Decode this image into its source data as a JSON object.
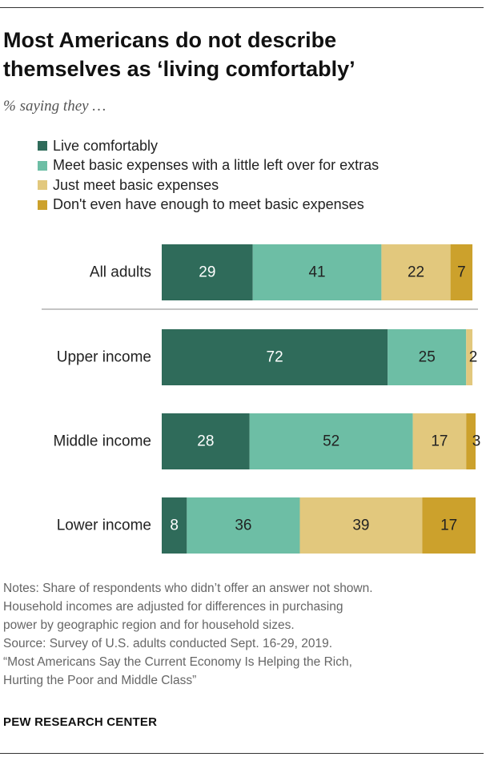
{
  "title_lines": [
    "Most Americans do not describe",
    "themselves as ‘living comfortably’"
  ],
  "subtitle": "% saying they …",
  "legend": [
    {
      "label": "Live comfortably",
      "color": "#2f6b5a"
    },
    {
      "label": "Meet basic expenses with a little left over for extras",
      "color": "#6dbea5"
    },
    {
      "label": "Just meet basic expenses",
      "color": "#e2c87d"
    },
    {
      "label": "Don't even have enough to meet basic expenses",
      "color": "#cca12c"
    }
  ],
  "chart_data": {
    "type": "bar",
    "orientation": "horizontal",
    "stacked": true,
    "title": "Most Americans do not describe themselves as ‘living comfortably’",
    "subtitle": "% saying they …",
    "categories": [
      "All adults",
      "Upper income",
      "Middle income",
      "Lower income"
    ],
    "series": [
      {
        "name": "Live comfortably",
        "color": "#2f6b5a",
        "label_color": "#ffffff",
        "values": [
          29,
          72,
          28,
          8
        ]
      },
      {
        "name": "Meet basic expenses with a little left over for extras",
        "color": "#6dbea5",
        "label_color": "#222222",
        "values": [
          41,
          25,
          52,
          36
        ]
      },
      {
        "name": "Just meet basic expenses",
        "color": "#e2c87d",
        "label_color": "#222222",
        "values": [
          22,
          2,
          17,
          39
        ]
      },
      {
        "name": "Don't even have enough to meet basic expenses",
        "color": "#cca12c",
        "label_color": "#222222",
        "values": [
          7,
          null,
          3,
          17
        ]
      }
    ],
    "value_labels": [
      [
        "29",
        "41",
        "22",
        "7"
      ],
      [
        "72",
        "25",
        "2",
        ""
      ],
      [
        "28",
        "52",
        "17",
        "3"
      ],
      [
        "8",
        "36",
        "39",
        "17"
      ]
    ],
    "xlim": [
      0,
      100
    ],
    "legend_position": "top"
  },
  "notes": [
    "Notes: Share of respondents who didn’t offer an answer not shown.",
    "Household incomes are adjusted for differences in purchasing",
    "power by geographic region and for household sizes.",
    "Source: Survey of U.S. adults conducted Sept. 16-29, 2019.",
    "“Most Americans Say the Current Economy Is Helping the Rich,",
    "Hurting the Poor and Middle Class”"
  ],
  "source_org": "PEW RESEARCH CENTER"
}
